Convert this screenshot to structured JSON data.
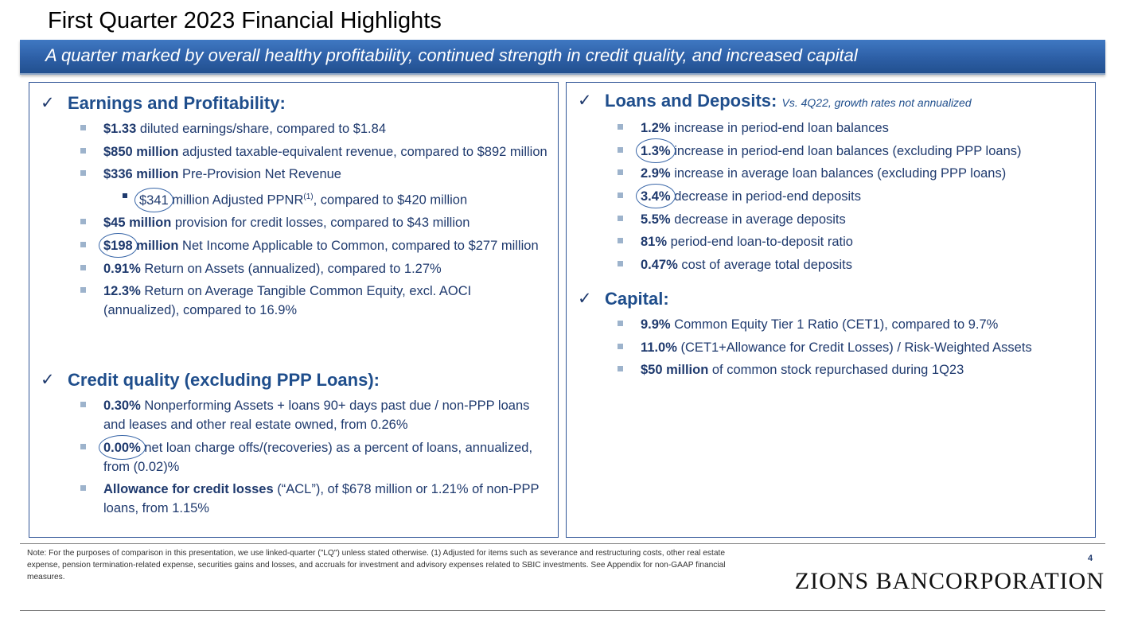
{
  "header": {
    "title": "First Quarter 2023 Financial Highlights",
    "banner": "A quarter marked by overall healthy profitability, continued strength in credit quality, and increased capital"
  },
  "left": {
    "earnings": {
      "heading": "Earnings and Profitability:",
      "items": [
        {
          "bold": "$1.33",
          "text": " diluted earnings/share, compared to $1.84"
        },
        {
          "bold": "$850 million",
          "text": " adjusted taxable-equivalent revenue, compared to $892 million"
        },
        {
          "bold": "$336 million",
          "text": " Pre-Provision Net Revenue"
        },
        {
          "circled": "$341",
          "text_a": " million Adjusted PPNR",
          "sup": "(1)",
          "text_b": ", compared to $420 million"
        },
        {
          "bold": "$45 million",
          "text": " provision for credit losses, compared to $43 million"
        },
        {
          "circled": "$198",
          "bold_rest": " million",
          "text": " Net Income Applicable to Common, compared to $277 million"
        },
        {
          "bold": "0.91%",
          "text": " Return on Assets (annualized), compared to 1.27%"
        },
        {
          "bold": "12.3%",
          "text": " Return on Average Tangible Common Equity, excl. AOCI (annualized), compared to 16.9%"
        }
      ]
    },
    "credit": {
      "heading": "Credit quality (excluding PPP Loans):",
      "items": [
        {
          "bold": "0.30%",
          "text": " Nonperforming Assets + loans 90+ days past due / non-PPP loans and leases and other real estate owned, from 0.26%"
        },
        {
          "circled": "0.00%",
          "text": " net loan charge offs/(recoveries) as a percent of loans, annualized, from (0.02)%"
        },
        {
          "bold": "Allowance for credit losses",
          "text": " (“ACL”), of $678 million or 1.21% of non-PPP loans, from 1.15%"
        }
      ]
    }
  },
  "right": {
    "loans": {
      "heading": "Loans and Deposits:",
      "subnote": "Vs. 4Q22, growth rates not annualized",
      "items": [
        {
          "bold": "1.2%",
          "text": " increase in period-end loan balances"
        },
        {
          "circled": "1.3%",
          "text": " increase in period-end loan balances (excluding PPP loans)"
        },
        {
          "bold": "2.9%",
          "text": " increase in average loan balances (excluding PPP loans)"
        },
        {
          "circled": "3.4%",
          "text": " decrease in period-end deposits"
        },
        {
          "bold": "5.5%",
          "text": " decrease in average deposits"
        },
        {
          "bold": "81%",
          "text": " period-end loan-to-deposit ratio"
        },
        {
          "bold": "0.47%",
          "text": " cost of average total deposits"
        }
      ]
    },
    "capital": {
      "heading": "Capital:",
      "items": [
        {
          "bold": "9.9%",
          "text": " Common Equity Tier 1 Ratio (CET1), compared to 9.7%"
        },
        {
          "bold": "11.0%",
          "text": " (CET1+Allowance for Credit Losses) / Risk-Weighted Assets"
        },
        {
          "bold": "$50 million",
          "text": " of common stock repurchased during 1Q23"
        }
      ]
    }
  },
  "footer": {
    "note": "Note:  For the purposes of comparison in this presentation, we use linked-quarter (\"LQ\") unless stated otherwise. (1) Adjusted for items such as severance and  restructuring costs, other real estate expense, pension termination-related expense, securities gains and losses, and accruals for investment and advisory expenses related to SBIC investments. See Appendix for non-GAAP financial measures.",
    "page_number": "4",
    "logo": "ZIONS BANCORPORATION"
  },
  "colors": {
    "banner": "#2d5fa6",
    "text": "#1f3a6e",
    "heading": "#1f4e8c",
    "bullet": "#9db3cc"
  },
  "icons": {
    "check": "check-icon",
    "bullet": "square-bullet-icon"
  }
}
